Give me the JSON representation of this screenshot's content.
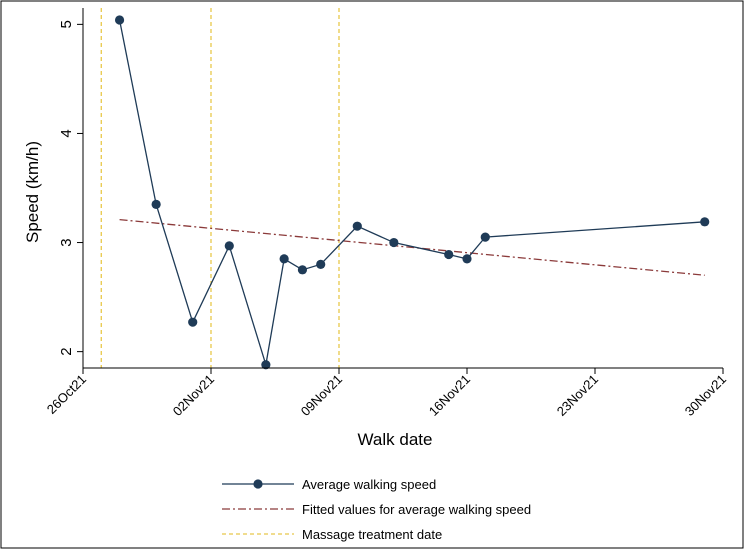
{
  "chart_data": {
    "type": "line",
    "xlabel": "Walk date",
    "ylabel": "Speed (km/h)",
    "x_ticks": [
      "26Oct21",
      "02Nov21",
      "09Nov21",
      "16Nov21",
      "23Nov21",
      "30Nov21"
    ],
    "y_ticks": [
      "2",
      "3",
      "4",
      "5"
    ],
    "xlim": [
      "2021-10-26",
      "2021-11-30"
    ],
    "ylim": [
      1.85,
      5.15
    ],
    "series": [
      {
        "name": "Average walking speed",
        "style": "line-with-markers",
        "color": "#1f3b57",
        "x": [
          "2021-10-28",
          "2021-10-30",
          "2021-11-01",
          "2021-11-03",
          "2021-11-05",
          "2021-11-06",
          "2021-11-07",
          "2021-11-08",
          "2021-11-10",
          "2021-11-12",
          "2021-11-15",
          "2021-11-16",
          "2021-11-17",
          "2021-11-29"
        ],
        "y": [
          5.04,
          3.35,
          2.27,
          2.97,
          1.88,
          2.85,
          2.75,
          2.8,
          3.15,
          3.0,
          2.89,
          2.85,
          3.05,
          3.19
        ]
      },
      {
        "name": "Fitted values for average walking speed",
        "style": "dash-dot",
        "color": "#8b3a3a",
        "x": [
          "2021-10-28",
          "2021-11-29"
        ],
        "y": [
          3.21,
          2.7
        ]
      },
      {
        "name": "Massage treatment date",
        "style": "vertical-dashed",
        "color": "#e8c84a",
        "x": [
          "2021-10-27",
          "2021-11-02",
          "2021-11-09"
        ]
      }
    ],
    "legend_position": "bottom",
    "grid": false
  }
}
